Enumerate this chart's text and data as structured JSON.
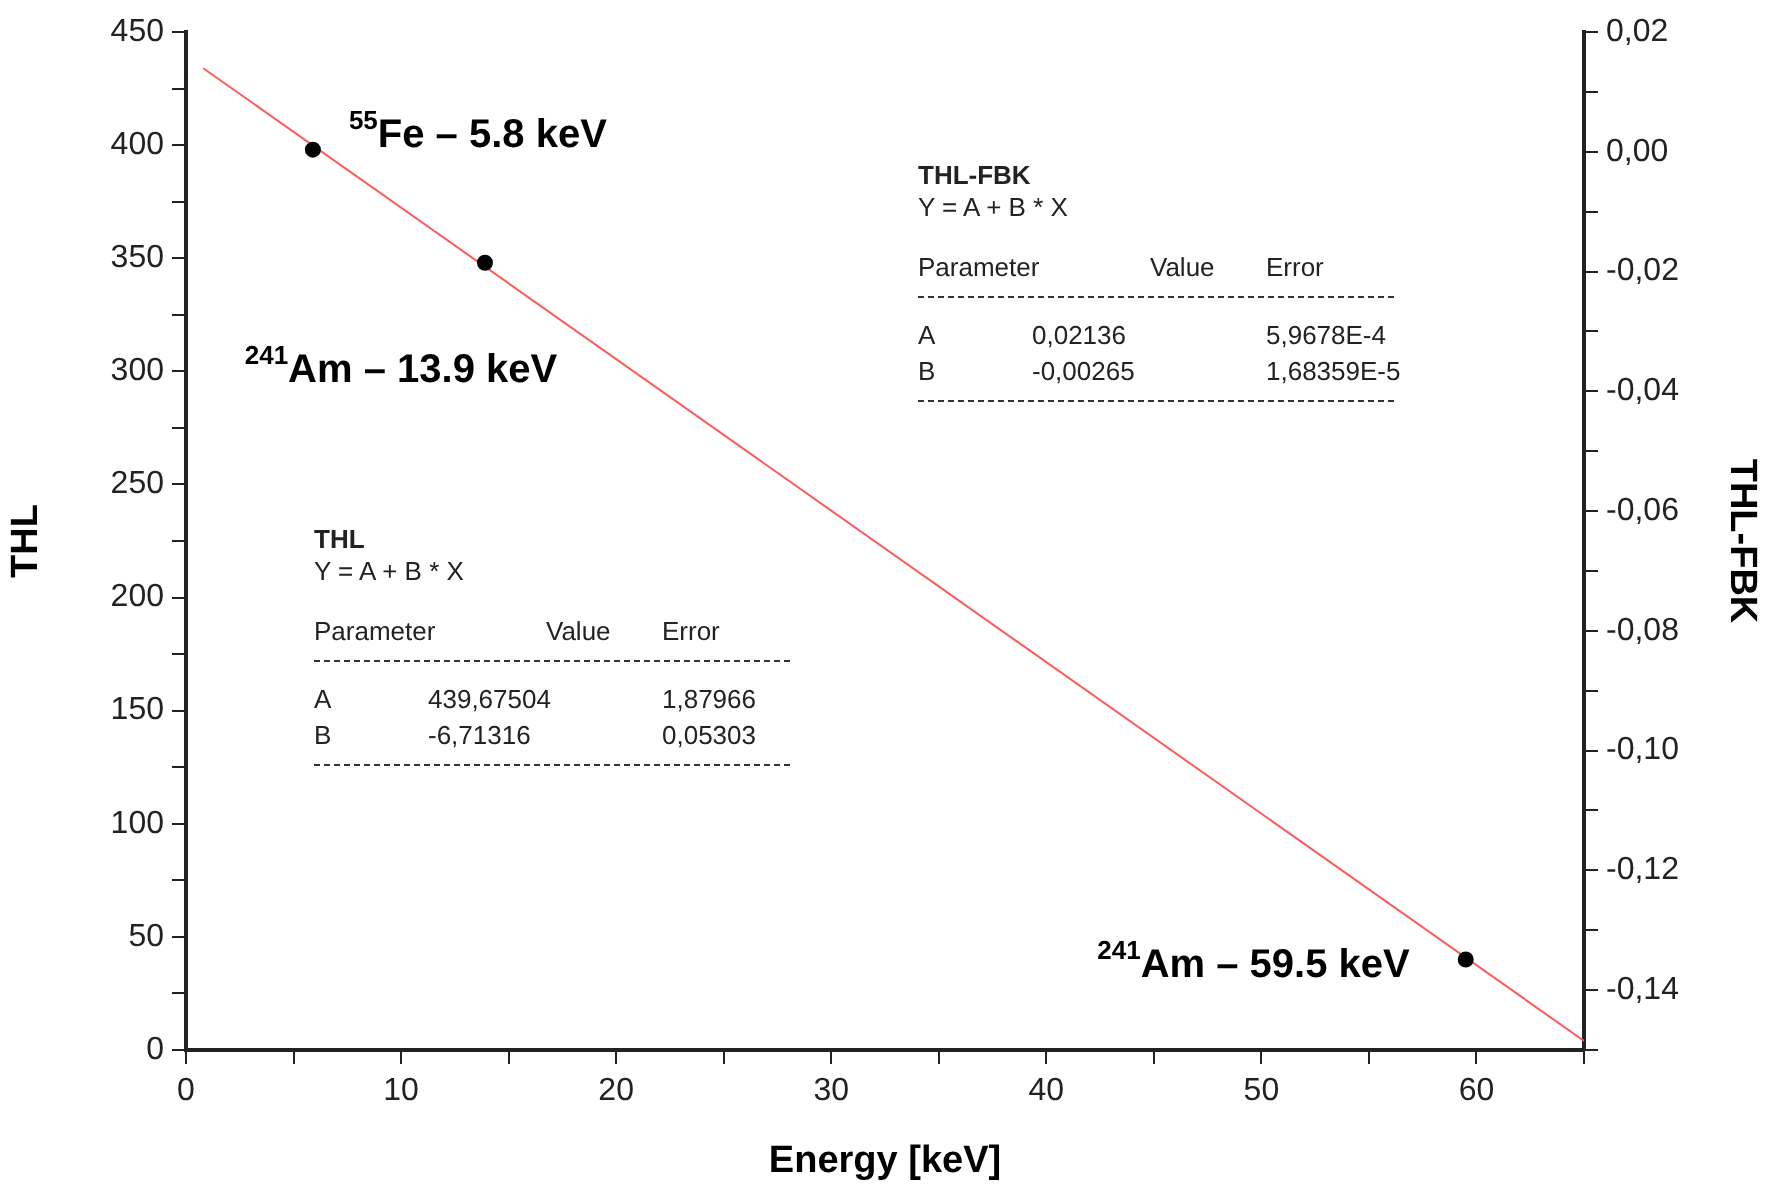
{
  "chart_data": {
    "type": "scatter",
    "xlabel": "Energy [keV]",
    "ylabel": "THL",
    "y2label": "THL-FBK",
    "xlim": [
      0,
      65
    ],
    "xticks": [
      0,
      {
        "value": 5,
        "label": null
      },
      10,
      {
        "value": 15,
        "label": null
      },
      20,
      {
        "value": 25,
        "label": null
      },
      30,
      {
        "value": 35,
        "label": null
      },
      40,
      {
        "value": 45,
        "label": null
      },
      50,
      {
        "value": 55,
        "label": null
      },
      60,
      {
        "value": 65,
        "label": null
      }
    ],
    "ylim": [
      0,
      450
    ],
    "yticks": [
      0,
      {
        "value": 25,
        "label": null
      },
      50,
      {
        "value": 75,
        "label": null
      },
      100,
      {
        "value": 125,
        "label": null
      },
      150,
      {
        "value": 175,
        "label": null
      },
      200,
      {
        "value": 225,
        "label": null
      },
      250,
      {
        "value": 275,
        "label": null
      },
      300,
      {
        "value": 325,
        "label": null
      },
      350,
      {
        "value": 375,
        "label": null
      },
      400,
      {
        "value": 425,
        "label": null
      },
      450
    ],
    "y2lim": [
      -0.15,
      0.02
    ],
    "y2ticks": [
      {
        "value": -0.15,
        "label": null
      },
      {
        "value": -0.14,
        "label": "-0,14"
      },
      {
        "value": -0.13,
        "label": null
      },
      {
        "value": -0.12,
        "label": "-0,12"
      },
      {
        "value": -0.11,
        "label": null
      },
      {
        "value": -0.1,
        "label": "-0,10"
      },
      {
        "value": -0.09,
        "label": null
      },
      {
        "value": -0.08,
        "label": "-0,08"
      },
      {
        "value": -0.07,
        "label": null
      },
      {
        "value": -0.06,
        "label": "-0,06"
      },
      {
        "value": -0.05,
        "label": null
      },
      {
        "value": -0.04,
        "label": "-0,04"
      },
      {
        "value": -0.03,
        "label": null
      },
      {
        "value": -0.02,
        "label": "-0,02"
      },
      {
        "value": -0.01,
        "label": null
      },
      {
        "value": 0,
        "label": "0,00"
      },
      {
        "value": 0.01,
        "label": null
      },
      {
        "value": 0.02,
        "label": "0,02"
      }
    ],
    "grid": false,
    "legend": false,
    "series": [
      {
        "x": [
          5.9,
          13.9,
          59.5
        ],
        "values": [
          398,
          348,
          40
        ],
        "color": "#000000",
        "marker": "circle"
      },
      {
        "type": "line",
        "x": [
          0.8,
          65
        ],
        "values": [
          434,
          4
        ],
        "color": "#ff5a5a",
        "marker": "none",
        "line_style": "solid"
      }
    ],
    "annotations": [
      {
        "text": "$^{55}$Fe – 5.8 keV",
        "x": 5.9,
        "y": 398
      },
      {
        "text": "$^{241}$Am – 13.9 keV",
        "x": 13.9,
        "y": 348
      },
      {
        "text": "$^{241}$Am – 59.5 keV",
        "x": 59.5,
        "y": 40
      },
      "THL",
      "Y = A + B * X",
      "Parameter Value Error",
      "A 439,67504 1,87966",
      "B -6,71316 0,05303",
      "THL-FBK",
      "Y = A + B * X",
      "Parameter Value Error",
      "A 0,02136 5,9678E-4",
      "B -0,00265 1,68359E-5"
    ]
  }
}
